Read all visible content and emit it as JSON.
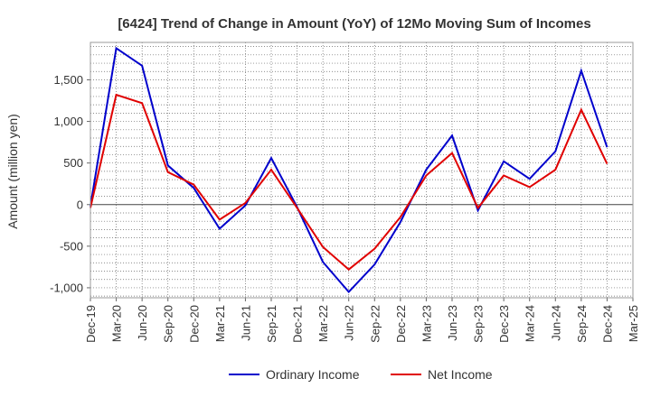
{
  "chart_data": {
    "type": "line",
    "title": "[6424]  Trend of Change in Amount (YoY) of 12Mo Moving Sum of Incomes",
    "ylabel": "Amount (million yen)",
    "xlabel": "",
    "ylim": [
      -1120,
      1950
    ],
    "yticks": [
      -1000,
      -500,
      0,
      500,
      1000,
      1500
    ],
    "ytick_labels": [
      "-1,000",
      "-500",
      "0",
      "500",
      "1,000",
      "1,500"
    ],
    "categories": [
      "Dec-19",
      "Mar-20",
      "Jun-20",
      "Sep-20",
      "Dec-20",
      "Mar-21",
      "Jun-21",
      "Sep-21",
      "Dec-21",
      "Mar-22",
      "Jun-22",
      "Sep-22",
      "Dec-22",
      "Mar-23",
      "Jun-23",
      "Sep-23",
      "Dec-23",
      "Mar-24",
      "Jun-24",
      "Sep-24",
      "Dec-24",
      "Mar-25"
    ],
    "grid": true,
    "legend_position": "bottom",
    "series": [
      {
        "name": "Ordinary Income",
        "color": "#0000cc",
        "values": [
          -20,
          1880,
          1670,
          470,
          200,
          -290,
          -10,
          560,
          -30,
          -690,
          -1050,
          -720,
          -210,
          420,
          830,
          -70,
          520,
          310,
          640,
          1610,
          690,
          null
        ]
      },
      {
        "name": "Net Income",
        "color": "#e00000",
        "values": [
          -40,
          1320,
          1220,
          390,
          240,
          -180,
          20,
          420,
          -40,
          -510,
          -780,
          -530,
          -150,
          350,
          620,
          -40,
          350,
          210,
          420,
          1140,
          490,
          null
        ]
      }
    ]
  }
}
